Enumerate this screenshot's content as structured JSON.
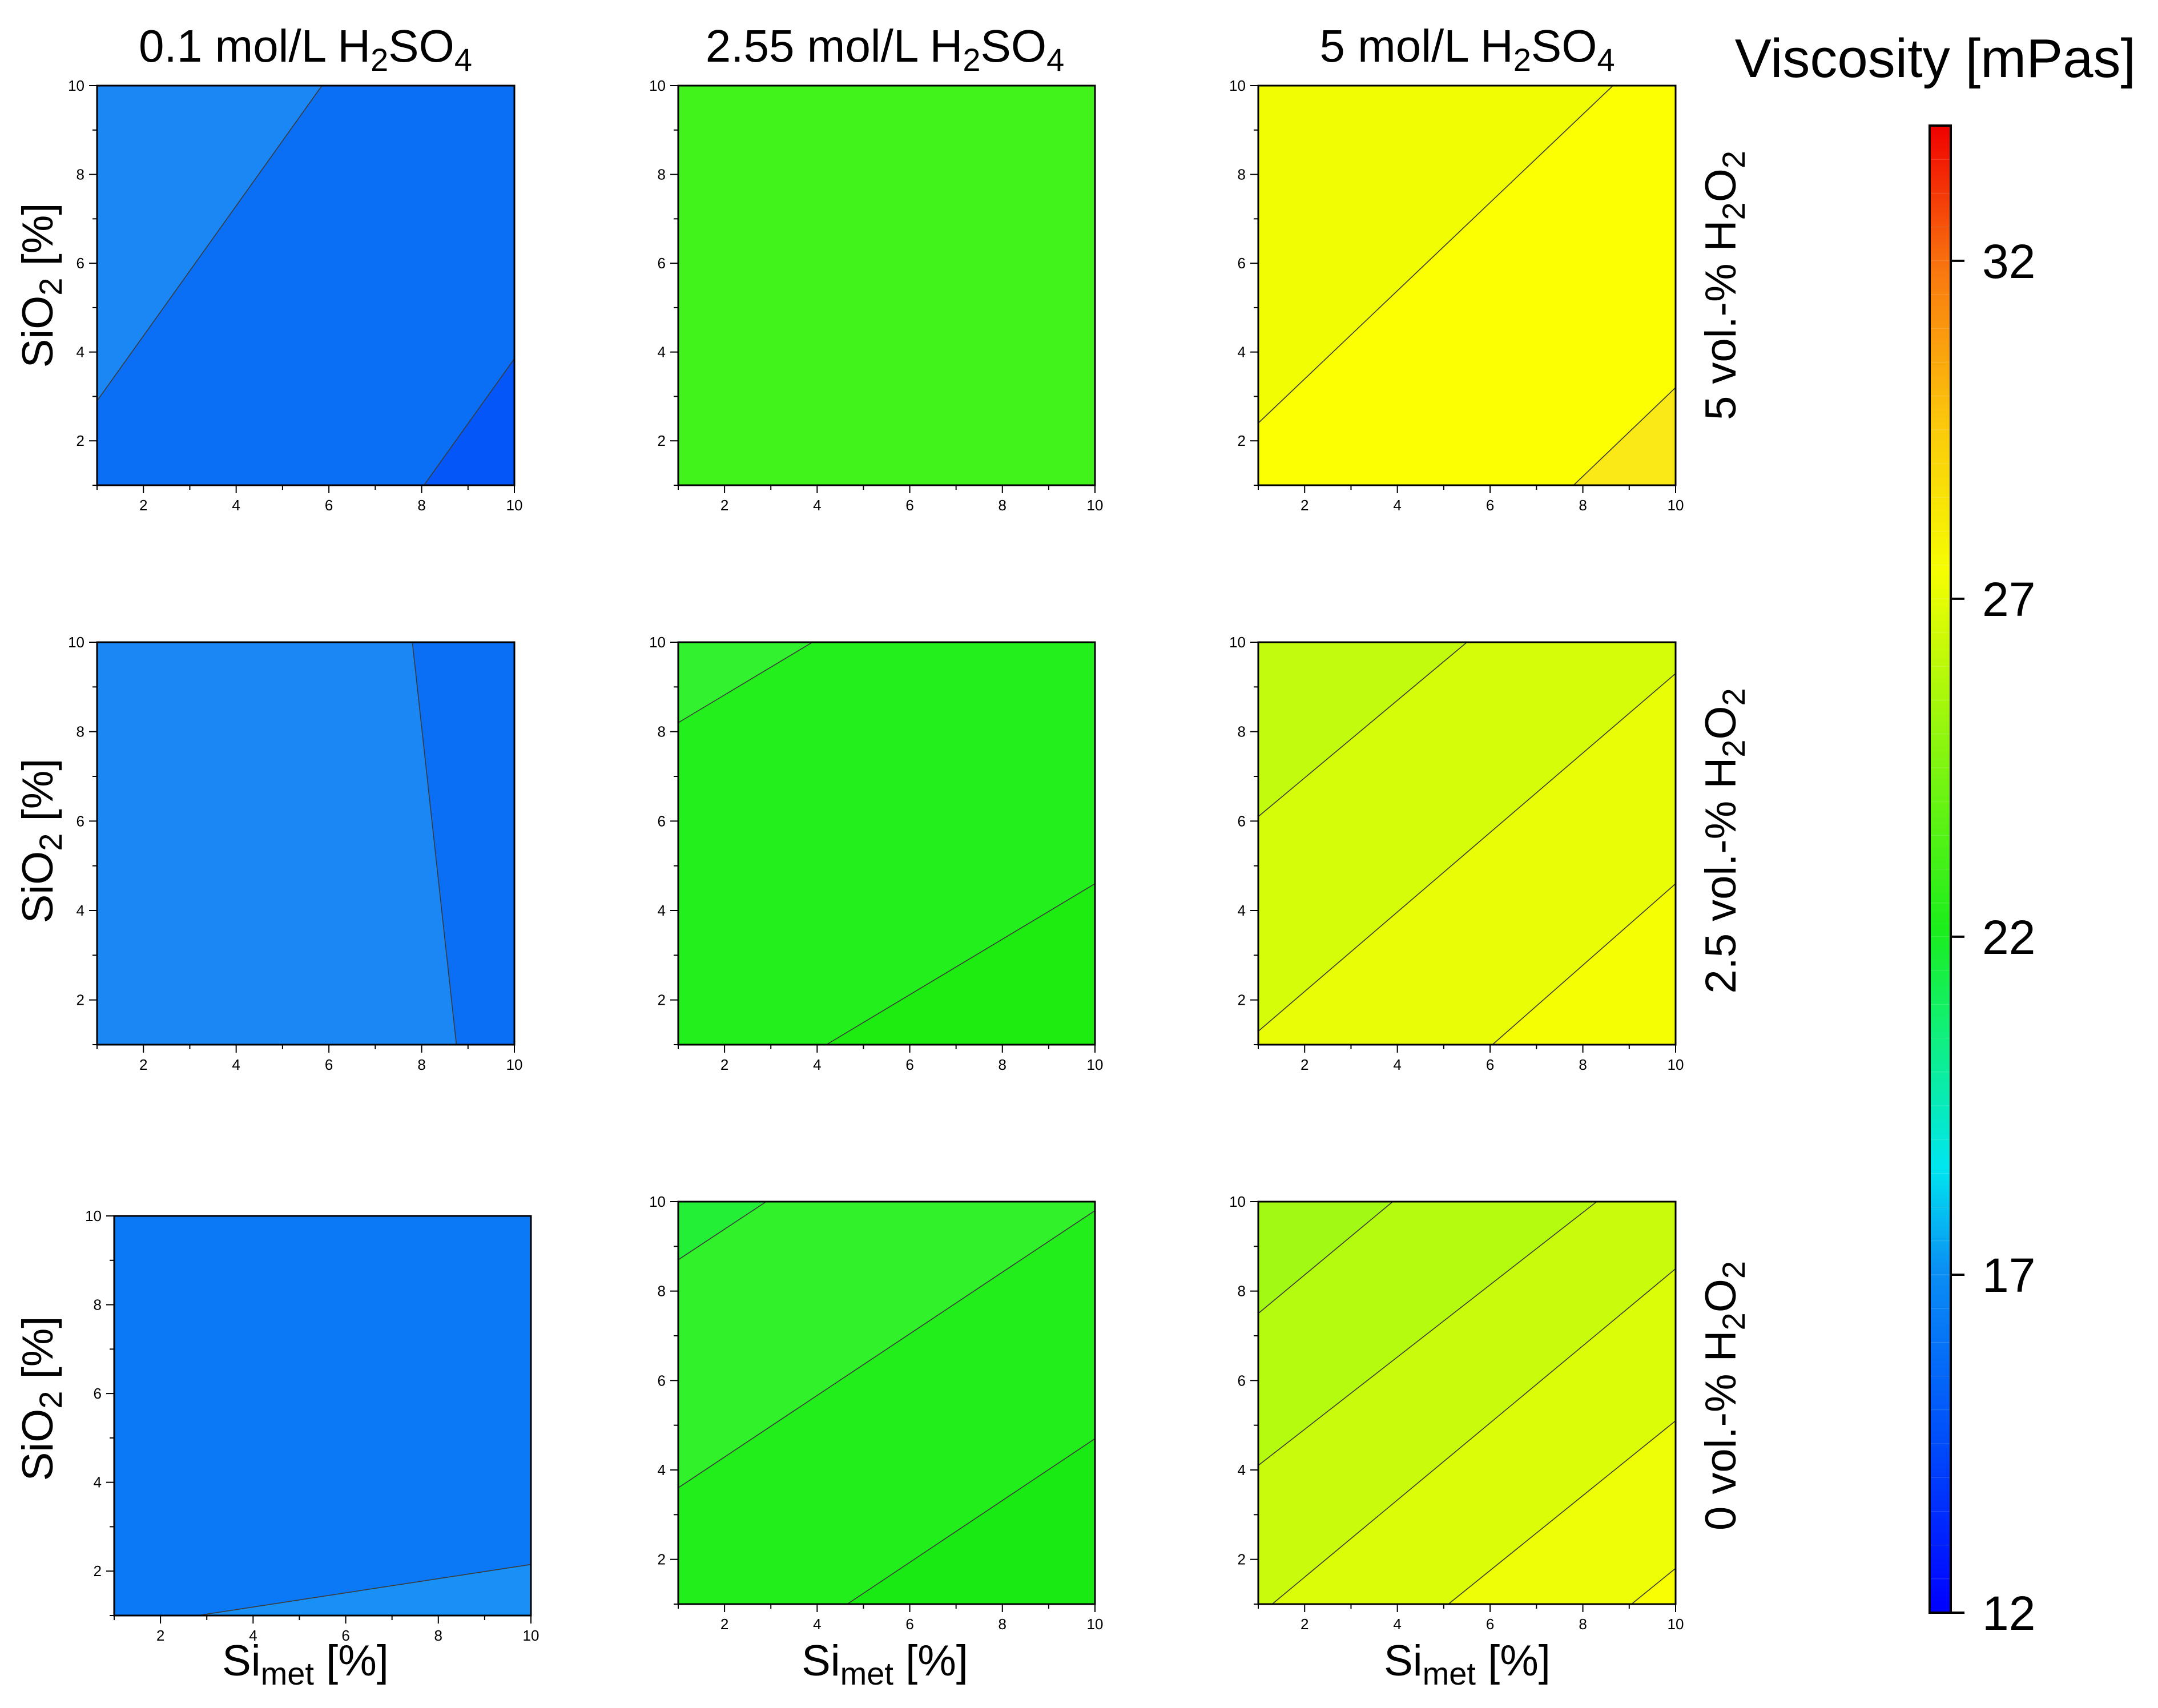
{
  "chart_data": {
    "type": "contour",
    "column_titles": [
      {
        "main": "0.1 mol/L H",
        "sub1": "2",
        "mid": "SO",
        "sub2": "4"
      },
      {
        "main": "2.55 mol/L H",
        "sub1": "2",
        "mid": "SO",
        "sub2": "4"
      },
      {
        "main": "5 mol/L H",
        "sub1": "2",
        "mid": "SO",
        "sub2": "4"
      }
    ],
    "row_labels": [
      {
        "main": "5 vol.-% H",
        "sub": "2",
        "tail": "O",
        "sub2": "2"
      },
      {
        "main": "2.5 vol.-% H",
        "sub": "2",
        "tail": "O",
        "sub2": "2"
      },
      {
        "main": "0 vol.-% H",
        "sub": "2",
        "tail": "O",
        "sub2": "2"
      }
    ],
    "xlabel": {
      "main": "Si",
      "sub": "met",
      "tail": " [%]"
    },
    "ylabel": {
      "main": "SiO",
      "sub": "2",
      "tail": " [%]"
    },
    "xlim": [
      1,
      10
    ],
    "ylim": [
      1,
      10
    ],
    "x_ticks": [
      "2",
      "4",
      "6",
      "8",
      "10"
    ],
    "y_ticks": [
      "2",
      "4",
      "6",
      "8",
      "10"
    ],
    "colorbar": {
      "title": "Viscosity [mPas]",
      "min": 12,
      "max": 34,
      "ticks": [
        "12",
        "17",
        "22",
        "27",
        "32"
      ]
    },
    "panels": [
      {
        "id": "r1c1",
        "regions": [
          {
            "color": "#1b87f4",
            "points": [
              [
                1,
                10
              ],
              [
                5.85,
                10
              ],
              [
                1,
                2.9
              ]
            ]
          },
          {
            "color": "#0b6ff6",
            "points": [
              [
                5.85,
                10
              ],
              [
                10,
                10
              ],
              [
                10,
                3.85
              ],
              [
                8.05,
                1
              ],
              [
                1,
                1
              ],
              [
                1,
                2.9
              ]
            ]
          },
          {
            "color": "#0456f8",
            "points": [
              [
                10,
                3.85
              ],
              [
                10,
                1
              ],
              [
                8.05,
                1
              ]
            ]
          }
        ],
        "lines": [
          [
            [
              1,
              2.9
            ],
            [
              5.85,
              10
            ]
          ],
          [
            [
              8.05,
              1
            ],
            [
              10,
              3.85
            ]
          ]
        ]
      },
      {
        "id": "r1c2",
        "regions": [
          {
            "color": "#41f21b",
            "points": [
              [
                1,
                1
              ],
              [
                10,
                1
              ],
              [
                10,
                10
              ],
              [
                1,
                10
              ]
            ]
          }
        ],
        "lines": []
      },
      {
        "id": "r1c3",
        "regions": [
          {
            "color": "#f0fd03",
            "points": [
              [
                1,
                2.4
              ],
              [
                1,
                10
              ],
              [
                8.65,
                10
              ]
            ]
          },
          {
            "color": "#fbff01",
            "points": [
              [
                1,
                2.4
              ],
              [
                8.65,
                10
              ],
              [
                10,
                10
              ],
              [
                10,
                3.2
              ],
              [
                7.8,
                1
              ],
              [
                1,
                1
              ]
            ]
          },
          {
            "color": "#fbe817",
            "points": [
              [
                10,
                3.2
              ],
              [
                10,
                1
              ],
              [
                7.8,
                1
              ]
            ]
          }
        ],
        "lines": [
          [
            [
              1,
              2.4
            ],
            [
              8.65,
              10
            ]
          ],
          [
            [
              7.8,
              1
            ],
            [
              10,
              3.2
            ]
          ]
        ]
      },
      {
        "id": "r2c1",
        "regions": [
          {
            "color": "#1b87f4",
            "points": [
              [
                1,
                1
              ],
              [
                8.75,
                1
              ],
              [
                7.8,
                10
              ],
              [
                1,
                10
              ]
            ]
          },
          {
            "color": "#0b6ff6",
            "points": [
              [
                8.75,
                1
              ],
              [
                10,
                1
              ],
              [
                10,
                10
              ],
              [
                7.8,
                10
              ]
            ]
          }
        ],
        "lines": [
          [
            [
              8.75,
              1
            ],
            [
              7.8,
              10
            ]
          ]
        ]
      },
      {
        "id": "r2c2",
        "regions": [
          {
            "color": "#32f12e",
            "points": [
              [
                1,
                8.2
              ],
              [
                1,
                10
              ],
              [
                3.9,
                10
              ]
            ]
          },
          {
            "color": "#22ef1c",
            "points": [
              [
                1,
                8.2
              ],
              [
                3.9,
                10
              ],
              [
                10,
                10
              ],
              [
                10,
                4.6
              ],
              [
                4.2,
                1
              ],
              [
                1,
                1
              ]
            ]
          },
          {
            "color": "#1cec10",
            "points": [
              [
                4.2,
                1
              ],
              [
                10,
                1
              ],
              [
                10,
                4.6
              ]
            ]
          }
        ],
        "lines": [
          [
            [
              1,
              8.2
            ],
            [
              3.9,
              10
            ]
          ],
          [
            [
              4.2,
              1
            ],
            [
              10,
              4.6
            ]
          ]
        ]
      },
      {
        "id": "r2c3",
        "regions": [
          {
            "color": "#c3fb0e",
            "points": [
              [
                1,
                6.1
              ],
              [
                1,
                10
              ],
              [
                5.5,
                10
              ]
            ]
          },
          {
            "color": "#d5fd0a",
            "points": [
              [
                1,
                6.1
              ],
              [
                5.5,
                10
              ],
              [
                10,
                10
              ],
              [
                10,
                9.3
              ],
              [
                1,
                1.3
              ]
            ]
          },
          {
            "color": "#e8fd06",
            "points": [
              [
                1,
                1.3
              ],
              [
                10,
                9.3
              ],
              [
                10,
                4.6
              ],
              [
                6.05,
                1
              ],
              [
                1,
                1
              ]
            ]
          },
          {
            "color": "#f6fe03",
            "points": [
              [
                6.05,
                1
              ],
              [
                10,
                1
              ],
              [
                10,
                4.6
              ]
            ]
          }
        ],
        "lines": [
          [
            [
              1,
              6.1
            ],
            [
              5.5,
              10
            ]
          ],
          [
            [
              1,
              1.3
            ],
            [
              10,
              9.3
            ]
          ],
          [
            [
              6.05,
              1
            ],
            [
              10,
              4.6
            ]
          ]
        ]
      },
      {
        "id": "r3c1",
        "regions": [
          {
            "color": "#0b79f5",
            "points": [
              [
                1,
                1
              ],
              [
                2.8,
                1
              ],
              [
                10,
                2.15
              ],
              [
                10,
                10
              ],
              [
                1,
                10
              ]
            ]
          },
          {
            "color": "#1990f5",
            "points": [
              [
                2.8,
                1
              ],
              [
                10,
                1
              ],
              [
                10,
                2.15
              ]
            ]
          }
        ],
        "lines": [
          [
            [
              2.8,
              1
            ],
            [
              10,
              2.15
            ]
          ]
        ]
      },
      {
        "id": "r3c2",
        "regions": [
          {
            "color": "#23ef37",
            "points": [
              [
                1,
                8.7
              ],
              [
                1,
                10
              ],
              [
                2.9,
                10
              ]
            ]
          },
          {
            "color": "#30f12a",
            "points": [
              [
                1,
                8.7
              ],
              [
                2.9,
                10
              ],
              [
                10,
                10
              ],
              [
                10,
                9.8
              ],
              [
                1,
                3.6
              ]
            ]
          },
          {
            "color": "#21ee1b",
            "points": [
              [
                1,
                3.6
              ],
              [
                10,
                9.8
              ],
              [
                10,
                4.7
              ],
              [
                4.65,
                1
              ],
              [
                1,
                1
              ]
            ]
          },
          {
            "color": "#1aea14",
            "points": [
              [
                4.65,
                1
              ],
              [
                10,
                1
              ],
              [
                10,
                4.7
              ]
            ]
          }
        ],
        "lines": [
          [
            [
              1,
              8.7
            ],
            [
              2.9,
              10
            ]
          ],
          [
            [
              1,
              3.6
            ],
            [
              10,
              9.8
            ]
          ],
          [
            [
              4.65,
              1
            ],
            [
              10,
              4.7
            ]
          ]
        ]
      },
      {
        "id": "r3c3",
        "regions": [
          {
            "color": "#a1f914",
            "points": [
              [
                1,
                7.5
              ],
              [
                1,
                10
              ],
              [
                3.9,
                10
              ]
            ]
          },
          {
            "color": "#b5fb10",
            "points": [
              [
                1,
                7.5
              ],
              [
                3.9,
                10
              ],
              [
                8.3,
                10
              ],
              [
                1,
                4.1
              ]
            ]
          },
          {
            "color": "#c9fc0c",
            "points": [
              [
                1,
                4.1
              ],
              [
                8.3,
                10
              ],
              [
                10,
                10
              ],
              [
                10,
                8.5
              ],
              [
                1.3,
                1
              ],
              [
                1,
                1
              ]
            ]
          },
          {
            "color": "#dcfd08",
            "points": [
              [
                1.3,
                1
              ],
              [
                10,
                8.5
              ],
              [
                10,
                5.1
              ],
              [
                5.1,
                1
              ]
            ]
          },
          {
            "color": "#eefe04",
            "points": [
              [
                5.1,
                1
              ],
              [
                10,
                5.1
              ],
              [
                10,
                1.8
              ],
              [
                9.05,
                1
              ]
            ]
          },
          {
            "color": "#fafe02",
            "points": [
              [
                9.05,
                1
              ],
              [
                10,
                1
              ],
              [
                10,
                1.8
              ]
            ]
          }
        ],
        "lines": [
          [
            [
              1,
              7.5
            ],
            [
              3.9,
              10
            ]
          ],
          [
            [
              1,
              4.1
            ],
            [
              8.3,
              10
            ]
          ],
          [
            [
              1.3,
              1
            ],
            [
              10,
              8.5
            ]
          ],
          [
            [
              5.1,
              1
            ],
            [
              10,
              5.1
            ]
          ],
          [
            [
              9.05,
              1
            ],
            [
              10,
              1.8
            ]
          ]
        ]
      }
    ]
  }
}
